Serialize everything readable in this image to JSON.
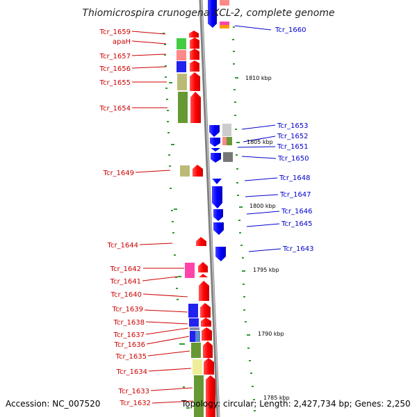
{
  "title": "Thiomicrospira crunogena XCL-2, complete genome",
  "footer": {
    "accession": "Accession: NC_007520",
    "topology": "Topology: circular; Length: 2,427,734 bp; Genes: 2,250"
  },
  "left_labels": [
    "Tcr_1659",
    "apaH",
    "Tcr_1657",
    "Tcr_1656",
    "Tcr_1655",
    "Tcr_1654",
    "Tcr_1649",
    "Tcr_1644",
    "Tcr_1642",
    "Tcr_1641",
    "Tcr_1640",
    "Tcr_1639",
    "Tcr_1638",
    "Tcr_1637",
    "Tcr_1636",
    "Tcr_1635",
    "Tcr_1634",
    "Tcr_1633",
    "Tcr_1632"
  ],
  "right_labels": [
    "Tcr_1660",
    "Tcr_1653",
    "Tcr_1652",
    "Tcr_1651",
    "Tcr_1650",
    "Tcr_1648",
    "Tcr_1647",
    "Tcr_1646",
    "Tcr_1645",
    "Tcr_1643"
  ],
  "scale_labels": [
    "1810 kbp",
    "1805 kbp",
    "1800 kbp",
    "1795 kbp",
    "1790 kbp",
    "1785 kbp"
  ],
  "colors": {
    "backbone": "#808080",
    "forward_gene": "#ff0000",
    "reverse_gene": "#0000ff",
    "left_label": "#cc0000",
    "right_label": "#0000cc",
    "tick": "#339933"
  }
}
